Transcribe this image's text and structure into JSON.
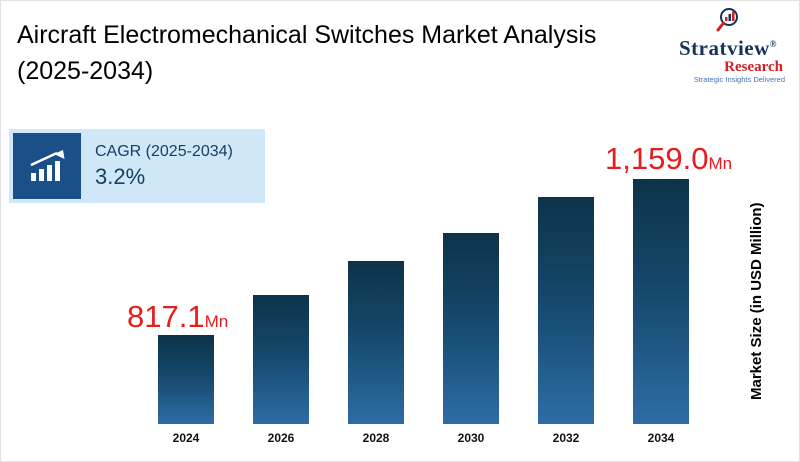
{
  "title": {
    "line1": "Aircraft Electromechanical Switches Market Analysis",
    "line2": "(2025-2034)"
  },
  "logo": {
    "name": "Stratview",
    "reg": "®",
    "sub": "Research",
    "tagline": "Strategic Insights Delivered"
  },
  "cagr": {
    "label": "CAGR (2025-2034)",
    "value": "3.2%"
  },
  "annotations": {
    "first": {
      "value": "817.1",
      "unit": "Mn"
    },
    "last": {
      "value": "1,159.0",
      "unit": "Mn"
    }
  },
  "axis": {
    "y_label": "Market Size (in USD Million)"
  },
  "colors": {
    "accent_red": "#e71c1c",
    "navy": "#173e63",
    "cagr_bg": "#cfe7f7",
    "icon_tile": "#1b4f87",
    "bar_top": "#0d3349",
    "bar_bottom": "#2d6da5"
  },
  "chart_data": {
    "type": "bar",
    "categories": [
      "2024",
      "2026",
      "2028",
      "2030",
      "2032",
      "2034"
    ],
    "values": [
      817.1,
      905,
      980,
      1040,
      1120,
      1159.0
    ],
    "title": "Aircraft Electromechanical Switches Market Analysis (2025-2034)",
    "xlabel": "",
    "ylabel": "Market Size (in USD Million)",
    "ylim": [
      620,
      1160
    ],
    "grid": false,
    "legend": false,
    "data_labels": {
      "2024": "817.1Mn",
      "2034": "1,159.0Mn"
    },
    "cagr_2025_2034_pct": 3.2
  }
}
